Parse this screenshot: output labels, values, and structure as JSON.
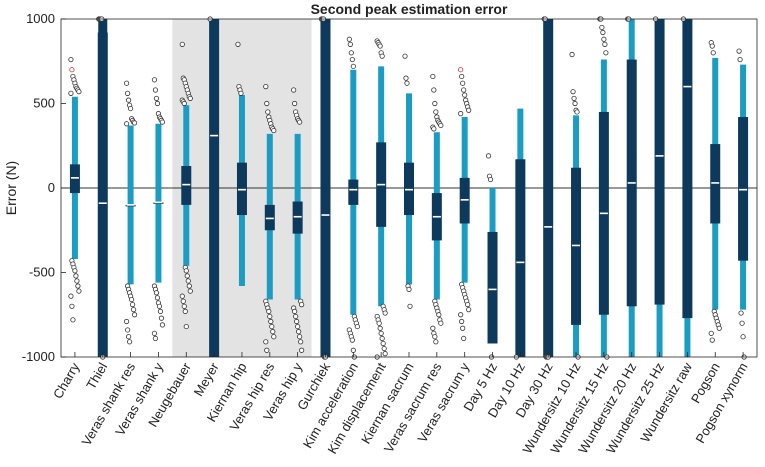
{
  "chart_data": {
    "type": "boxplot",
    "title": "Second peak estimation error",
    "xlabel": "",
    "ylabel": "Error (N)",
    "ylim": [
      -1000,
      1000
    ],
    "yticks": [
      -1000,
      -500,
      0,
      500,
      1000
    ],
    "grid": false,
    "zero_line": true,
    "colors": {
      "dark_box": "#0d3a5c",
      "light_box": "#1b9cc2",
      "shaded_region": "#e3e3e3",
      "outlier_fill": "#ffffff",
      "outlier_edge": "#333333",
      "outlier_red_edge": "#cc3333",
      "median_line": "#ffffff",
      "axis": "#262626"
    },
    "shaded_categories": [
      "Neugebauer",
      "Veras hip y"
    ],
    "categories": [
      "Charry",
      "Thiel",
      "Veras shank res",
      "Veras shank y",
      "Neugebauer",
      "Meyer",
      "Kiernan hip",
      "Veras hip res",
      "Veras hip y",
      "Gurchiek",
      "Kim acceleration",
      "Kim displacement",
      "Kiernan sacrum",
      "Veras sacrum res",
      "Veras sacrum y",
      "Day 5 Hz",
      "Day 10 Hz",
      "Day 30 Hz",
      "Wundersitz 10 Hz",
      "Wundersitz 15 Hz",
      "Wundersitz 20 Hz",
      "Wundersitz 25 Hz",
      "Wundersitz raw",
      "Pogson",
      "Pogson xynorm"
    ],
    "boxes": [
      {
        "category": "Charry",
        "style": "light",
        "whisker_low": -420,
        "q1": -30,
        "median": 60,
        "q3": 140,
        "whisker_high": 540,
        "outliers": [
          760,
          700,
          660,
          640,
          620,
          600,
          590,
          580,
          570,
          560,
          -430,
          -450,
          -470,
          -490,
          -520,
          -550,
          -580,
          -610,
          -640,
          -700,
          -780
        ]
      },
      {
        "category": "Thiel",
        "style": "dark",
        "whisker_low": -1000,
        "q1": -1000,
        "median": -90,
        "q3": 920,
        "whisker_high": 1000,
        "outliers": [
          1000,
          1000,
          1000,
          1000,
          -1000
        ]
      },
      {
        "category": "Veras shank res",
        "style": "light",
        "whisker_low": -570,
        "q1": -100,
        "median": -100,
        "q3": -100,
        "whisker_high": 370,
        "outliers": [
          620,
          560,
          520,
          490,
          470,
          410,
          400,
          390,
          385,
          380,
          -580,
          -600,
          -620,
          -640,
          -660,
          -690,
          -720,
          -750,
          -790,
          -840,
          -880,
          -910
        ]
      },
      {
        "category": "Veras shank y",
        "style": "light",
        "whisker_low": -560,
        "q1": -85,
        "median": -85,
        "q3": -85,
        "whisker_high": 380,
        "outliers": [
          640,
          580,
          530,
          500,
          440,
          420,
          410,
          400,
          390,
          -580,
          -600,
          -620,
          -650,
          -680,
          -700,
          -730,
          -770,
          -810,
          -860,
          -890
        ]
      },
      {
        "category": "Neugebauer",
        "style": "light",
        "whisker_low": -460,
        "q1": -100,
        "median": 20,
        "q3": 130,
        "whisker_high": 490,
        "outliers": [
          850,
          650,
          640,
          620,
          600,
          580,
          560,
          540,
          530,
          520,
          510,
          500,
          -470,
          -490,
          -520,
          -550,
          -580,
          -610,
          -640,
          -670,
          -700,
          -730,
          -820
        ]
      },
      {
        "category": "Meyer",
        "style": "dark",
        "whisker_low": -1000,
        "q1": -1000,
        "median": 310,
        "q3": 1000,
        "whisker_high": 1000,
        "outliers": [
          1000
        ]
      },
      {
        "category": "Kiernan hip",
        "style": "light",
        "whisker_low": -580,
        "q1": -160,
        "median": -10,
        "q3": 150,
        "whisker_high": 550,
        "outliers": [
          850,
          600,
          580,
          560
        ]
      },
      {
        "category": "Veras hip res",
        "style": "light",
        "whisker_low": -660,
        "q1": -250,
        "median": -180,
        "q3": -100,
        "whisker_high": 320,
        "outliers": [
          600,
          500,
          450,
          420,
          400,
          380,
          360,
          350,
          340,
          -670,
          -690,
          -710,
          -730,
          -760,
          -790,
          -820,
          -850,
          -880,
          -910,
          -960
        ]
      },
      {
        "category": "Veras hip y",
        "style": "light",
        "whisker_low": -660,
        "q1": -270,
        "median": -170,
        "q3": -80,
        "whisker_high": 320,
        "outliers": [
          580,
          500,
          450,
          430,
          410,
          400,
          390,
          -670,
          -690,
          -710,
          -730,
          -760,
          -790,
          -820,
          -850,
          -880,
          -910,
          -960
        ]
      },
      {
        "category": "Gurchiek",
        "style": "dark",
        "whisker_low": -1000,
        "q1": -1000,
        "median": -160,
        "q3": 1000,
        "whisker_high": 1000,
        "outliers": [
          1000,
          1000,
          1000,
          -1000,
          -1000
        ]
      },
      {
        "category": "Kim acceleration",
        "style": "light",
        "whisker_low": -750,
        "q1": -100,
        "median": -10,
        "q3": 50,
        "whisker_high": 700,
        "outliers": [
          880,
          850,
          800,
          760,
          720,
          -760,
          -780,
          -800,
          -820,
          -840,
          -860,
          -880,
          -900,
          -960,
          -1000
        ]
      },
      {
        "category": "Kim displacement",
        "style": "light",
        "whisker_low": -700,
        "q1": -230,
        "median": 20,
        "q3": 270,
        "whisker_high": 720,
        "outliers": [
          870,
          860,
          850,
          840,
          800,
          780,
          -700,
          -720,
          -740,
          -760,
          -780,
          -800,
          -830,
          -860,
          -890,
          -920,
          -950,
          -980,
          -1000
        ]
      },
      {
        "category": "Kiernan sacrum",
        "style": "light",
        "whisker_low": -570,
        "q1": -160,
        "median": -10,
        "q3": 150,
        "whisker_high": 560,
        "outliers": [
          780,
          650,
          620,
          -580,
          -600,
          -700
        ]
      },
      {
        "category": "Veras sacrum res",
        "style": "light",
        "whisker_low": -660,
        "q1": -310,
        "median": -170,
        "q3": -30,
        "whisker_high": 330,
        "outliers": [
          660,
          580,
          500,
          450,
          420,
          400,
          390,
          380,
          370,
          360,
          350,
          -670,
          -690,
          -710,
          -730,
          -750,
          -780,
          -800,
          -830,
          -860,
          -880,
          -910
        ]
      },
      {
        "category": "Veras sacrum y",
        "style": "light",
        "whisker_low": -560,
        "q1": -210,
        "median": -70,
        "q3": 60,
        "whisker_high": 420,
        "outliers": [
          700,
          660,
          620,
          580,
          550,
          520,
          500,
          480,
          460,
          440,
          -570,
          -590,
          -610,
          -630,
          -650,
          -670,
          -690,
          -720,
          -750,
          -790,
          -830,
          -890
        ]
      },
      {
        "category": "Day 5 Hz",
        "style": "light",
        "whisker_low": -920,
        "q1": -920,
        "median": -600,
        "q3": -260,
        "whisker_high": 0,
        "outliers": [
          190,
          70,
          50,
          -1000
        ]
      },
      {
        "category": "Day 10 Hz",
        "style": "light",
        "whisker_low": -1000,
        "q1": -1000,
        "median": -440,
        "q3": 170,
        "whisker_high": 470,
        "outliers": [
          -1000
        ]
      },
      {
        "category": "Day 30 Hz",
        "style": "dark",
        "whisker_low": -1000,
        "q1": -1000,
        "median": -230,
        "q3": 1000,
        "whisker_high": 1000,
        "outliers": [
          1000,
          1000,
          -1000,
          -1000,
          -1000
        ]
      },
      {
        "category": "Wundersitz 10 Hz",
        "style": "light",
        "whisker_low": -1000,
        "q1": -810,
        "median": -340,
        "q3": 120,
        "whisker_high": 430,
        "outliers": [
          790,
          570,
          530,
          500,
          460,
          450,
          -1000
        ]
      },
      {
        "category": "Wundersitz 15 Hz",
        "style": "light",
        "whisker_low": -1000,
        "q1": -750,
        "median": -150,
        "q3": 450,
        "whisker_high": 760,
        "outliers": [
          1000,
          1000,
          950,
          920,
          880,
          850,
          800,
          -1000
        ]
      },
      {
        "category": "Wundersitz 20 Hz",
        "style": "light",
        "whisker_low": -1000,
        "q1": -700,
        "median": 30,
        "q3": 760,
        "whisker_high": 1000,
        "outliers": [
          1000,
          1000
        ]
      },
      {
        "category": "Wundersitz 25 Hz",
        "style": "light",
        "whisker_low": -1000,
        "q1": -690,
        "median": 190,
        "q3": 1000,
        "whisker_high": 1000,
        "outliers": [
          1000
        ]
      },
      {
        "category": "Wundersitz raw",
        "style": "light",
        "whisker_low": -1000,
        "q1": -770,
        "median": 600,
        "q3": 1000,
        "whisker_high": 1000,
        "outliers": [
          1000
        ]
      },
      {
        "category": "Pogson",
        "style": "light",
        "whisker_low": -720,
        "q1": -210,
        "median": 30,
        "q3": 260,
        "whisker_high": 770,
        "outliers": [
          860,
          840,
          800,
          -730,
          -750,
          -770,
          -790,
          -810,
          -830,
          -860,
          -900
        ]
      },
      {
        "category": "Pogson xynorm",
        "style": "light",
        "whisker_low": -720,
        "q1": -430,
        "median": -10,
        "q3": 420,
        "whisker_high": 730,
        "outliers": [
          810,
          760,
          -740,
          -800,
          -880,
          -1000
        ]
      }
    ]
  }
}
